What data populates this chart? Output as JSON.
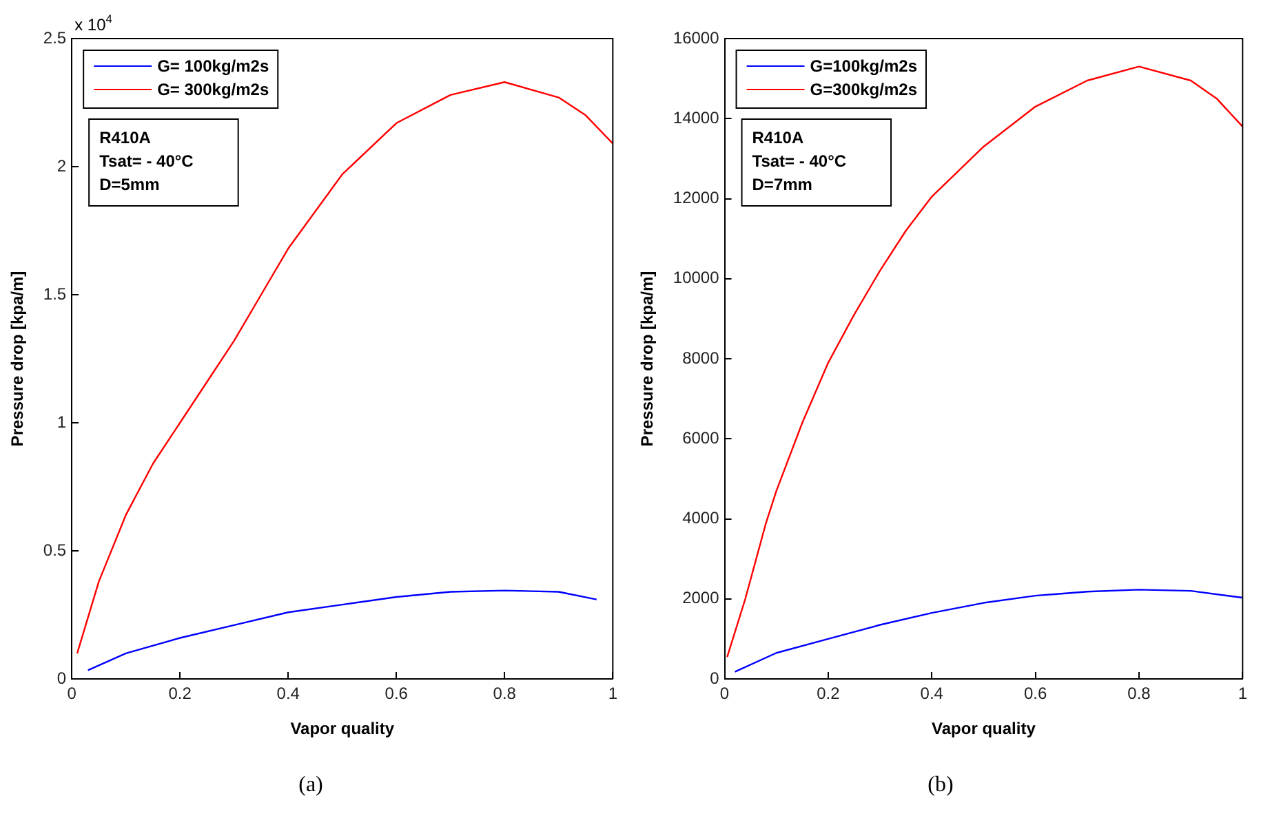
{
  "chart_data": [
    {
      "type": "line",
      "title": "(a)",
      "xlabel": "Vapor quality",
      "ylabel": "Pressure drop [kpa/m]",
      "legend": "top left",
      "grid": false,
      "marker": "none",
      "line_style": "solid",
      "xlim": [
        0,
        1
      ],
      "xticks": [
        0,
        0.2,
        0.4,
        0.6,
        0.8,
        1
      ],
      "ylim": [
        0,
        2.5
      ],
      "yticks": [
        0,
        0.5,
        1,
        1.5,
        2,
        2.5
      ],
      "annotations": [
        "x 10$^{4}$",
        "R410A\nTsat= - 40°C\nD=5mm"
      ],
      "series": [
        {
          "name": "G= 100kg/m2s",
          "color": "#0000ff",
          "x": [
            0.03,
            0.1,
            0.2,
            0.3,
            0.4,
            0.5,
            0.6,
            0.7,
            0.8,
            0.9,
            0.97
          ],
          "values": [
            0.034,
            0.1,
            0.16,
            0.21,
            0.26,
            0.29,
            0.32,
            0.34,
            0.345,
            0.34,
            0.31
          ]
        },
        {
          "name": "G= 300kg/m2s",
          "color": "#ff0000",
          "x": [
            0.01,
            0.05,
            0.1,
            0.15,
            0.2,
            0.25,
            0.3,
            0.35,
            0.4,
            0.5,
            0.6,
            0.7,
            0.8,
            0.9,
            0.95,
            1
          ],
          "values": [
            0.1,
            0.38,
            0.64,
            0.84,
            1,
            1.16,
            1.32,
            1.5,
            1.68,
            1.97,
            2.17,
            2.28,
            2.33,
            2.27,
            2.2,
            2.09
          ]
        }
      ]
    },
    {
      "type": "line",
      "title": "(b)",
      "xlabel": "Vapor quality",
      "ylabel": "Pressure drop [kpa/m]",
      "legend": "top left",
      "grid": false,
      "marker": "none",
      "line_style": "solid",
      "xlim": [
        0,
        1
      ],
      "xticks": [
        0,
        0.2,
        0.4,
        0.6,
        0.8,
        1
      ],
      "ylim": [
        0,
        16000
      ],
      "yticks": [
        0,
        2000,
        4000,
        6000,
        8000,
        10000,
        12000,
        14000,
        16000
      ],
      "annotations": [
        "R410A\nTsat= - 40°C\nD=7mm"
      ],
      "series": [
        {
          "name": "G=100kg/m2s",
          "color": "#0000ff",
          "x": [
            0.02,
            0.1,
            0.2,
            0.3,
            0.4,
            0.5,
            0.6,
            0.7,
            0.8,
            0.9,
            1
          ],
          "values": [
            180,
            650,
            1000,
            1350,
            1650,
            1900,
            2080,
            2180,
            2230,
            2200,
            2030
          ]
        },
        {
          "name": "G=300kg/m2s",
          "color": "#ff0000",
          "x": [
            0.005,
            0.04,
            0.08,
            0.1,
            0.15,
            0.2,
            0.25,
            0.3,
            0.35,
            0.4,
            0.5,
            0.6,
            0.7,
            0.8,
            0.9,
            0.95,
            1
          ],
          "values": [
            550,
            2000,
            3900,
            4700,
            6400,
            7900,
            9100,
            10200,
            11200,
            12050,
            13300,
            14300,
            14950,
            15300,
            14950,
            14500,
            13800
          ]
        }
      ]
    }
  ]
}
